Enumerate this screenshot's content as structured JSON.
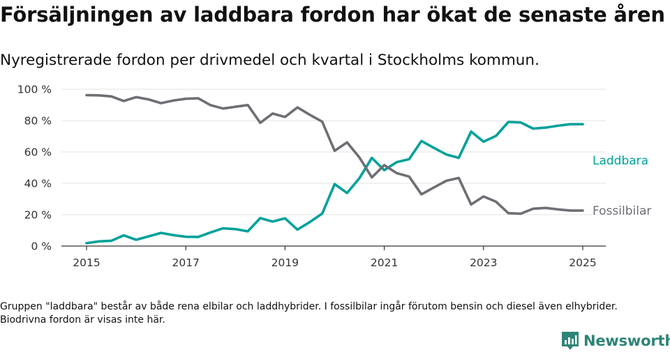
{
  "header": {
    "title": "Försäljningen av laddbara fordon har ökat de senaste åren",
    "subtitle": "Nyregistrerade fordon per drivmedel och kvartal i Stockholms kommun."
  },
  "chart_data": {
    "type": "line",
    "title": "Försäljningen av laddbara fordon har ökat de senaste åren",
    "subtitle": "Nyregistrerade fordon per drivmedel och kvartal i Stockholms kommun.",
    "xlabel": "",
    "ylabel": "",
    "xlim": [
      2015,
      2025.25
    ],
    "ylim": [
      0,
      100
    ],
    "x_ticks": [
      "2015",
      "2017",
      "2019",
      "2021",
      "2023",
      "2025"
    ],
    "y_ticks": [
      "0 %",
      "20 %",
      "40 %",
      "60 %",
      "80 %",
      "100 %"
    ],
    "grid": "horizontal",
    "x": [
      2015.0,
      2015.25,
      2015.5,
      2015.75,
      2016.0,
      2016.25,
      2016.5,
      2016.75,
      2017.0,
      2017.25,
      2017.5,
      2017.75,
      2018.0,
      2018.25,
      2018.5,
      2018.75,
      2019.0,
      2019.25,
      2019.5,
      2019.75,
      2020.0,
      2020.25,
      2020.5,
      2020.75,
      2021.0,
      2021.25,
      2021.5,
      2021.75,
      2022.0,
      2022.25,
      2022.5,
      2022.75,
      2023.0,
      2023.25,
      2023.5,
      2023.75,
      2024.0,
      2024.25,
      2024.5,
      2024.75,
      2025.0
    ],
    "series": [
      {
        "name": "Laddbara",
        "color": "#00a19a",
        "values": [
          1.8,
          3.0,
          3.4,
          6.8,
          4.0,
          6.2,
          8.4,
          7.0,
          5.9,
          5.8,
          8.7,
          11.3,
          10.8,
          9.4,
          17.8,
          15.6,
          17.7,
          10.5,
          15.3,
          20.7,
          39.5,
          33.8,
          43.3,
          56.2,
          48.4,
          53.5,
          55.4,
          67.0,
          62.6,
          58.4,
          56.2,
          73.0,
          66.6,
          70.2,
          79.1,
          78.8,
          74.9,
          75.5,
          76.7,
          77.7,
          77.7
        ],
        "end_label": "Laddbara"
      },
      {
        "name": "Fossilbilar",
        "color": "#6e6e74",
        "values": [
          96.2,
          96.1,
          95.4,
          92.5,
          95.0,
          93.5,
          91.1,
          92.8,
          93.9,
          94.2,
          89.8,
          87.7,
          88.8,
          89.9,
          78.6,
          84.5,
          82.3,
          88.4,
          83.7,
          79.3,
          60.7,
          66.1,
          56.5,
          43.8,
          51.6,
          46.5,
          44.3,
          33.0,
          37.4,
          41.6,
          43.4,
          26.5,
          31.6,
          28.3,
          21.0,
          20.6,
          23.8,
          24.3,
          23.4,
          22.6,
          22.6
        ],
        "end_label": "Fossilbilar"
      }
    ]
  },
  "footnote": "Gruppen \"laddbara\" består av både rena elbilar och laddhybrider. I fossilbilar ingår förutom bensin och diesel även elhybrider. Biodrivna fordon är visas inte här.",
  "brand": {
    "name": "Newsworthy",
    "logo_icon": "bar-chart-flag-icon",
    "color": "#2f8478"
  }
}
